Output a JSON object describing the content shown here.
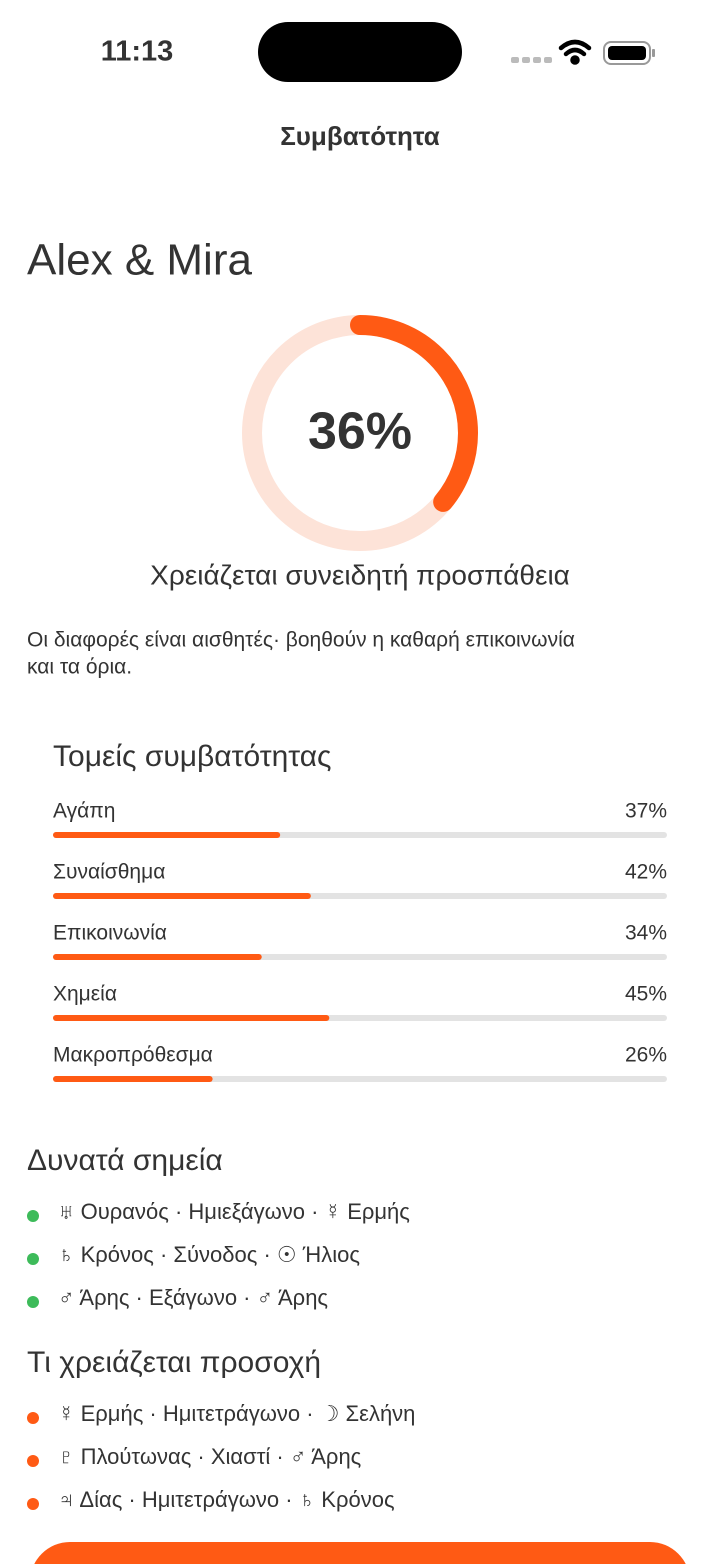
{
  "status_bar": {
    "time": "11:13"
  },
  "header": {
    "title": "Συμβατότητα"
  },
  "couple": "Alex & Mira",
  "score": {
    "value": 36,
    "label": "36%"
  },
  "verdict": "Χρειάζεται συνειδητή προσπάθεια",
  "description": [
    "Οι διαφορές είναι αισθητές· βοηθούν η καθαρή επικοινωνία",
    "και τα όρια."
  ],
  "areas": {
    "title": "Τομείς συμβατότητας",
    "items": [
      {
        "label": "Αγάπη",
        "value": 37,
        "value_label": "37%"
      },
      {
        "label": "Συναίσθημα",
        "value": 42,
        "value_label": "42%"
      },
      {
        "label": "Επικοινωνία",
        "value": 34,
        "value_label": "34%"
      },
      {
        "label": "Χημεία",
        "value": 45,
        "value_label": "45%"
      },
      {
        "label": "Μακροπρόθεσμα",
        "value": 26,
        "value_label": "26%"
      }
    ]
  },
  "strengths": {
    "title": "Δυνατά σημεία",
    "items": [
      "♅ Ουρανός · Ημιεξάγωνο · ☿ Ερμής",
      "♄ Κρόνος · Σύνοδος · ☉ Ήλιος",
      "♂ Άρης · Εξάγωνο · ♂ Άρης"
    ]
  },
  "attention": {
    "title": "Τι χρειάζεται προσοχή",
    "items": [
      "☿ Ερμής · Ημιτετράγωνο · ☽ Σελήνη",
      "♇ Πλούτωνας · Χιαστί · ♂ Άρης",
      "♃ Δίας · Ημιτετράγωνο · ♄ Κρόνος"
    ]
  }
}
